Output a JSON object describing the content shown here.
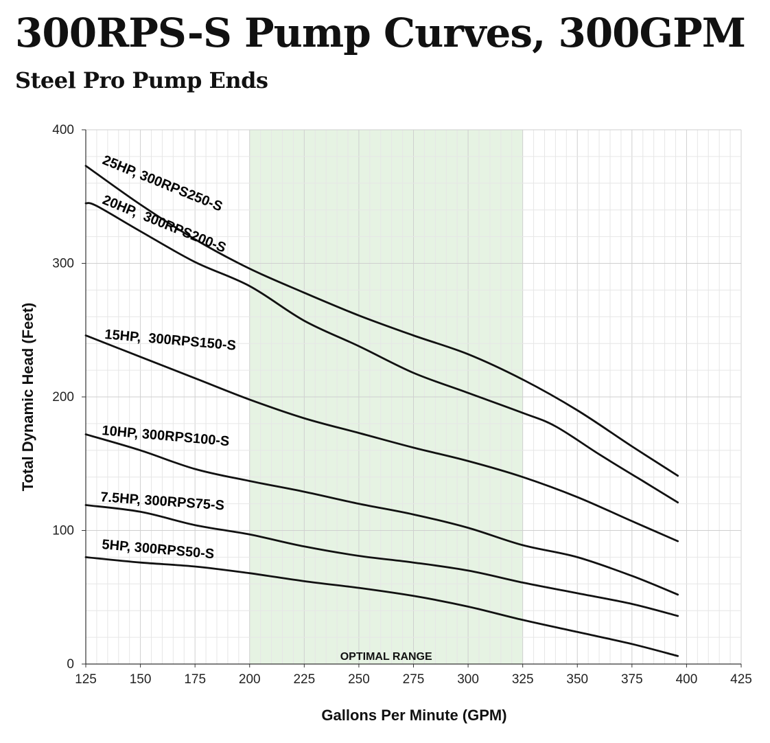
{
  "header": {
    "title": "300RPS-S Pump Curves, 300GPM",
    "subtitle": "Steel Pro Pump Ends"
  },
  "chart_data": {
    "type": "line",
    "xlabel": "Gallons Per Minute (GPM)",
    "ylabel": "Total Dynamic Head (Feet)",
    "xlim": [
      125,
      425
    ],
    "ylim": [
      0,
      400
    ],
    "x_ticks": [
      125,
      150,
      175,
      200,
      225,
      250,
      275,
      300,
      325,
      350,
      375,
      400,
      425
    ],
    "y_ticks": [
      0,
      100,
      200,
      300,
      400
    ],
    "grid": true,
    "line_color": "#111111",
    "optimal_range": {
      "label": "OPTIMAL RANGE",
      "from": 200,
      "to": 325,
      "color": "#e6f3e3"
    },
    "series": [
      {
        "name": "25HP, 300RPS250-S",
        "x": [
          125,
          150,
          175,
          200,
          225,
          250,
          275,
          300,
          325,
          350,
          375,
          396
        ],
        "y": [
          373,
          344,
          318,
          296,
          278,
          261,
          246,
          232,
          213,
          190,
          163,
          141
        ]
      },
      {
        "name": "20HP,  300RPS200-S",
        "x": [
          125,
          130,
          150,
          175,
          200,
          225,
          250,
          275,
          300,
          325,
          340,
          360,
          380,
          396
        ],
        "y": [
          345,
          343,
          324,
          301,
          283,
          257,
          238,
          218,
          203,
          188,
          178,
          157,
          137,
          121
        ]
      },
      {
        "name": "15HP,  300RPS150-S",
        "x": [
          125,
          150,
          175,
          200,
          225,
          250,
          275,
          300,
          325,
          350,
          375,
          396
        ],
        "y": [
          246,
          230,
          214,
          198,
          184,
          173,
          162,
          152,
          140,
          125,
          107,
          92
        ]
      },
      {
        "name": "10HP, 300RPS100-S",
        "x": [
          125,
          150,
          175,
          200,
          225,
          250,
          275,
          300,
          325,
          350,
          375,
          396
        ],
        "y": [
          172,
          160,
          146,
          137,
          129,
          120,
          112,
          102,
          89,
          80,
          66,
          52
        ]
      },
      {
        "name": "7.5HP, 300RPS75-S",
        "x": [
          125,
          150,
          175,
          200,
          225,
          250,
          275,
          300,
          325,
          350,
          375,
          396
        ],
        "y": [
          119,
          114,
          104,
          97,
          88,
          81,
          76,
          70,
          61,
          53,
          45,
          36
        ]
      },
      {
        "name": "5HP, 300RPS50-S",
        "x": [
          125,
          150,
          175,
          200,
          225,
          250,
          275,
          300,
          325,
          350,
          375,
          396
        ],
        "y": [
          80,
          76,
          73,
          68,
          62,
          57,
          51,
          43,
          33,
          24,
          15,
          6
        ]
      }
    ]
  }
}
